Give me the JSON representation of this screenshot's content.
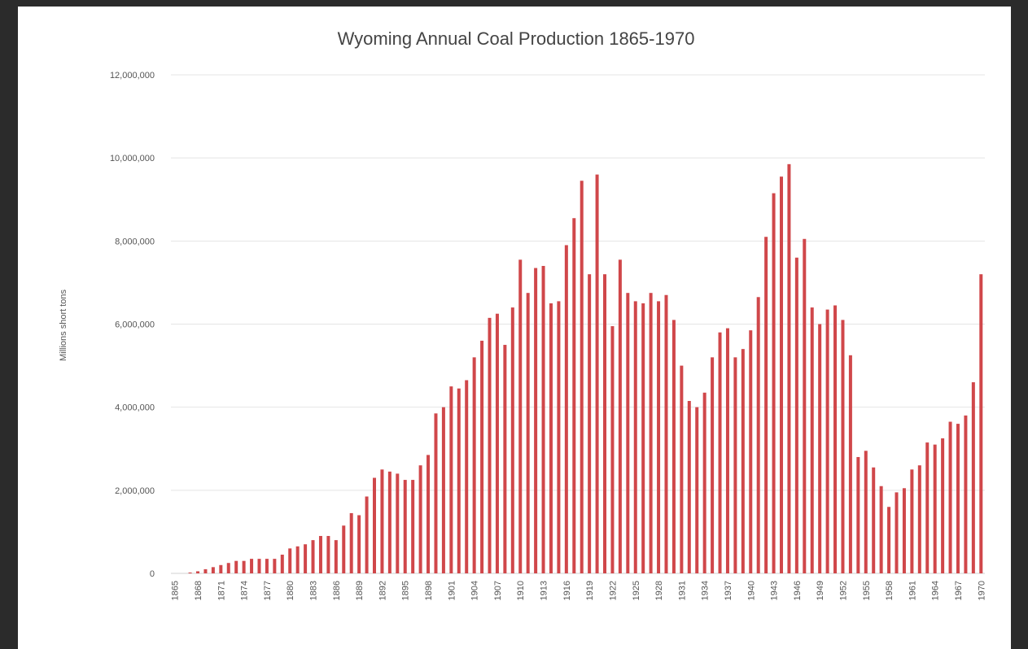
{
  "chart_data": {
    "type": "bar",
    "title": "Wyoming Annual Coal Production 1865-1970",
    "y_label": "Millions short tons",
    "categories": [
      "1865",
      null,
      null,
      "1868",
      null,
      null,
      "1871",
      null,
      null,
      "1874",
      null,
      null,
      "1877",
      null,
      null,
      "1880",
      null,
      null,
      "1883",
      null,
      null,
      "1886",
      null,
      null,
      "1889",
      null,
      null,
      "1892",
      null,
      null,
      "1895",
      null,
      null,
      "1898",
      null,
      null,
      "1901",
      null,
      null,
      "1904",
      null,
      null,
      "1907",
      null,
      null,
      "1910",
      null,
      null,
      "1913",
      null,
      null,
      "1916",
      null,
      null,
      "1919",
      null,
      null,
      "1922",
      null,
      null,
      "1925",
      null,
      null,
      "1928",
      null,
      null,
      "1931",
      null,
      null,
      "1934",
      null,
      null,
      "1937",
      null,
      null,
      "1940",
      null,
      null,
      "1943",
      null,
      null,
      "1946",
      null,
      null,
      "1949",
      null,
      null,
      "1952",
      null,
      null,
      "1955",
      null,
      null,
      "1958",
      null,
      null,
      "1961",
      null,
      null,
      "1964",
      null,
      null,
      "1967",
      null,
      null,
      "1970"
    ],
    "values": [
      0,
      0,
      20000,
      50000,
      100000,
      150000,
      200000,
      250000,
      300000,
      300000,
      350000,
      350000,
      350000,
      350000,
      450000,
      600000,
      650000,
      700000,
      800000,
      900000,
      900000,
      800000,
      1150000,
      1450000,
      1400000,
      1850000,
      2300000,
      2500000,
      2450000,
      2400000,
      2250000,
      2250000,
      2600000,
      2850000,
      3850000,
      4000000,
      4500000,
      4450000,
      4650000,
      5200000,
      5600000,
      6150000,
      6250000,
      5500000,
      6400000,
      7550000,
      6750000,
      7350000,
      7400000,
      6500000,
      6550000,
      7900000,
      8550000,
      9450000,
      7200000,
      9600000,
      7200000,
      5950000,
      7550000,
      6750000,
      6550000,
      6500000,
      6750000,
      6550000,
      6700000,
      6100000,
      5000000,
      4150000,
      4000000,
      4350000,
      5200000,
      5800000,
      5900000,
      5200000,
      5400000,
      5850000,
      6650000,
      8100000,
      9150000,
      9550000,
      9850000,
      7600000,
      8050000,
      6400000,
      6000000,
      6350000,
      6450000,
      6100000,
      5250000,
      2800000,
      2950000,
      2550000,
      2100000,
      1600000,
      1950000,
      2050000,
      2500000,
      2600000,
      3150000,
      3100000,
      3250000,
      3650000,
      3600000,
      3800000,
      4600000,
      7200000
    ],
    "color": "#d0474a",
    "ylim": [
      0,
      12000000
    ],
    "yticks": [
      0,
      {
        "value": 2000000,
        "label": "2,000,000"
      },
      {
        "value": 4000000,
        "label": "4,000,000"
      },
      {
        "value": 6000000,
        "label": "6,000,000"
      },
      {
        "value": 8000000,
        "label": "8,000,000"
      },
      {
        "value": 10000000,
        "label": "10,000,000"
      },
      {
        "value": 12000000,
        "label": "12,000,000"
      }
    ],
    "grid": true
  }
}
